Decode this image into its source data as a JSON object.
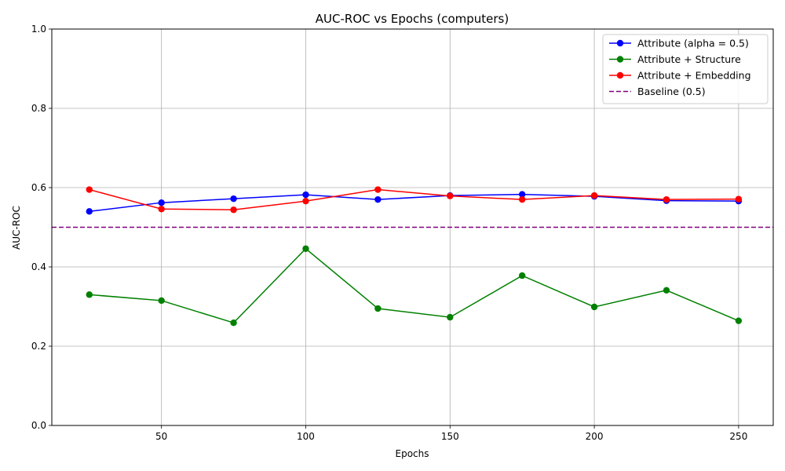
{
  "chart_data": {
    "type": "line",
    "title": "AUC-ROC vs Epochs (computers)",
    "xlabel": "Epochs",
    "ylabel": "AUC-ROC",
    "xlim": [
      12,
      262
    ],
    "ylim": [
      0.0,
      1.0
    ],
    "x_ticks": [
      50,
      100,
      150,
      200,
      250
    ],
    "y_ticks": [
      0.0,
      0.2,
      0.4,
      0.6,
      0.8,
      1.0
    ],
    "x_tick_labels": [
      "50",
      "100",
      "150",
      "200",
      "250"
    ],
    "y_tick_labels": [
      "0.0",
      "0.2",
      "0.4",
      "0.6",
      "0.8",
      "1.0"
    ],
    "grid": true,
    "legend_position": "top-right",
    "x": [
      25,
      50,
      75,
      100,
      125,
      150,
      175,
      200,
      225,
      250
    ],
    "series": [
      {
        "name": "Attribute (alpha = 0.5)",
        "color": "#0000ff",
        "style": "solid-marker",
        "values": [
          0.54,
          0.562,
          0.572,
          0.582,
          0.57,
          0.58,
          0.583,
          0.578,
          0.567,
          0.566
        ]
      },
      {
        "name": "Attribute + Structure",
        "color": "#008000",
        "style": "solid-marker",
        "values": [
          0.33,
          0.315,
          0.259,
          0.446,
          0.295,
          0.273,
          0.378,
          0.299,
          0.341,
          0.264
        ]
      },
      {
        "name": "Attribute + Embedding",
        "color": "#ff0000",
        "style": "solid-marker",
        "values": [
          0.595,
          0.546,
          0.544,
          0.566,
          0.595,
          0.579,
          0.57,
          0.58,
          0.57,
          0.571
        ]
      }
    ],
    "baseline": {
      "name": "Baseline (0.5)",
      "color": "#800080",
      "style": "dashed",
      "value": 0.5
    }
  }
}
